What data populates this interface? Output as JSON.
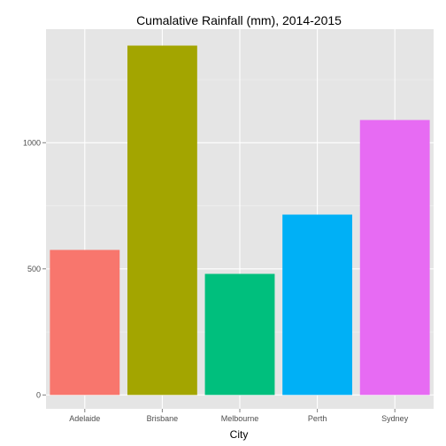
{
  "chart_data": {
    "type": "bar",
    "title": "Cumalative Rainfall (mm), 2014-2015",
    "xlabel": "City",
    "ylabel": "",
    "categories": [
      "Adelaide",
      "Brisbane",
      "Melbourne",
      "Perth",
      "Sydney"
    ],
    "values": [
      575,
      1385,
      480,
      715,
      1090
    ],
    "colors": [
      "#F8766D",
      "#A3A500",
      "#00BF7D",
      "#00B0F6",
      "#E76BF3"
    ],
    "ylim": [
      -55,
      1450
    ],
    "yticks": [
      0,
      500,
      1000
    ],
    "ytick_labels": [
      "0",
      "500",
      "1000"
    ],
    "grid": true,
    "panel_background": "#e5e5e5",
    "grid_color": "#ffffff"
  }
}
